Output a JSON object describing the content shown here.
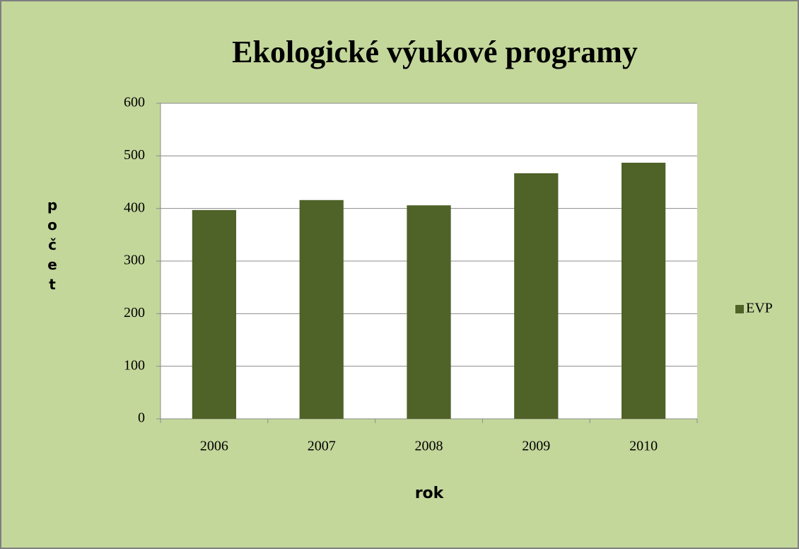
{
  "chart_data": {
    "type": "bar",
    "title": "Ekologické výukové programy",
    "x_label": "rok",
    "y_label": "počet",
    "categories": [
      "2006",
      "2007",
      "2008",
      "2009",
      "2010"
    ],
    "series": [
      {
        "name": "EVP",
        "color": "#4f6228",
        "values": [
          397,
          416,
          406,
          467,
          487
        ]
      }
    ],
    "ylim": [
      0,
      600
    ],
    "yticks": [
      0,
      100,
      200,
      300,
      400,
      500,
      600
    ],
    "grid": true,
    "legend": "right"
  }
}
